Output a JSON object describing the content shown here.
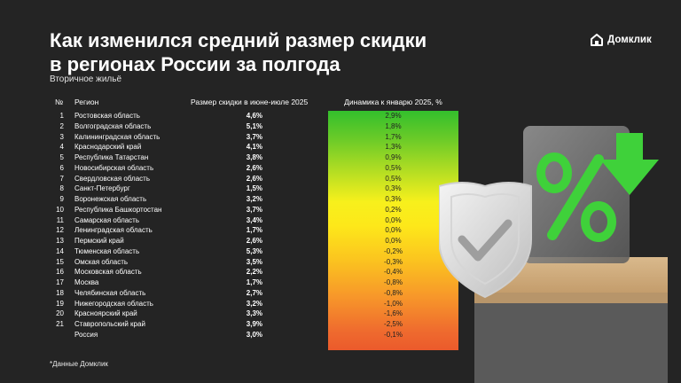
{
  "title_line1": "Как изменился средний размер скидки",
  "title_line2": "в регионах России за полгода",
  "subtitle": "Вторичное жильё",
  "brand": "Домклик",
  "headers": {
    "num": "№",
    "region": "Регион",
    "discount": "Размер скидки в июне-июле 2025",
    "dynamics": "Динамика к январю 2025, %"
  },
  "rows": [
    {
      "num": "1",
      "region": "Ростовская область",
      "discount": "4,6%",
      "dynamics": "2,9%"
    },
    {
      "num": "2",
      "region": "Волгоградская область",
      "discount": "5,1%",
      "dynamics": "1,8%"
    },
    {
      "num": "3",
      "region": "Калининградская область",
      "discount": "3,7%",
      "dynamics": "1,7%"
    },
    {
      "num": "4",
      "region": "Краснодарский край",
      "discount": "4,1%",
      "dynamics": "1,3%"
    },
    {
      "num": "5",
      "region": "Республика Татарстан",
      "discount": "3,8%",
      "dynamics": "0,9%"
    },
    {
      "num": "6",
      "region": "Новосибирская область",
      "discount": "2,6%",
      "dynamics": "0,5%"
    },
    {
      "num": "7",
      "region": "Свердловская область",
      "discount": "2,6%",
      "dynamics": "0,5%"
    },
    {
      "num": "8",
      "region": "Санкт-Петербург",
      "discount": "1,5%",
      "dynamics": "0,3%"
    },
    {
      "num": "9",
      "region": "Воронежская область",
      "discount": "3,2%",
      "dynamics": "0,3%"
    },
    {
      "num": "10",
      "region": "Республика Башкортостан",
      "discount": "3,7%",
      "dynamics": "0,2%"
    },
    {
      "num": "11",
      "region": "Самарская область",
      "discount": "3,4%",
      "dynamics": "0,0%"
    },
    {
      "num": "12",
      "region": "Ленинградская область",
      "discount": "1,7%",
      "dynamics": "0,0%"
    },
    {
      "num": "13",
      "region": "Пермский край",
      "discount": "2,6%",
      "dynamics": "0,0%"
    },
    {
      "num": "14",
      "region": "Тюменская область",
      "discount": "5,3%",
      "dynamics": "-0,2%"
    },
    {
      "num": "15",
      "region": "Омская область",
      "discount": "3,5%",
      "dynamics": "-0,3%"
    },
    {
      "num": "16",
      "region": "Московская область",
      "discount": "2,2%",
      "dynamics": "-0,4%"
    },
    {
      "num": "17",
      "region": "Москва",
      "discount": "1,7%",
      "dynamics": "-0,8%"
    },
    {
      "num": "18",
      "region": "Челябинская область",
      "discount": "2,7%",
      "dynamics": "-0,8%"
    },
    {
      "num": "19",
      "region": "Нижегородская область",
      "discount": "3,2%",
      "dynamics": "-1,0%"
    },
    {
      "num": "20",
      "region": "Красноярский край",
      "discount": "3,3%",
      "dynamics": "-1,6%"
    },
    {
      "num": "21",
      "region": "Ставропольский край",
      "discount": "3,9%",
      "dynamics": "-2,5%"
    },
    {
      "num": "",
      "region": "Россия",
      "discount": "3,0%",
      "dynamics": "-0,1%"
    }
  ],
  "footnote": "*Данные Домклик",
  "colors": {
    "background": "#242424",
    "accent_green": "#33bf2d",
    "accent_orange": "#eb5a2c"
  },
  "illustration": {
    "icons": [
      "shield-check-icon",
      "percent-icon",
      "down-arrow-icon",
      "pedestal"
    ]
  }
}
